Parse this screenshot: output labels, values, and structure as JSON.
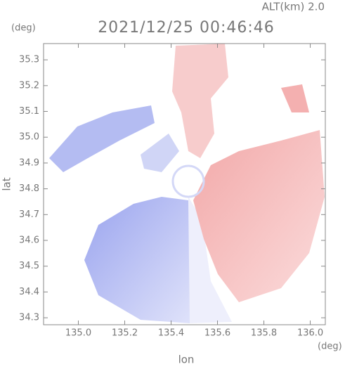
{
  "chart_data": {
    "type": "heatmap",
    "title": "2021/12/25 00:46:46",
    "subtitle": "ALT(km) 2.0",
    "x_label": "lon",
    "y_label": "lat",
    "x_unit": "(deg)",
    "y_unit": "(deg)",
    "xlim": [
      134.85,
      136.065
    ],
    "ylim": [
      34.273,
      35.363
    ],
    "xticks": [
      {
        "value": 135.0,
        "label": "135.0"
      },
      135.2,
      135.4,
      135.6,
      135.8,
      {
        "value": 136.0,
        "label": "136.0"
      }
    ],
    "yticks": [
      34.3,
      34.4,
      34.5,
      34.6,
      34.7,
      34.8,
      34.9,
      {
        "value": 35.0,
        "label": "35.0"
      },
      35.1,
      35.2,
      35.3
    ]
  }
}
